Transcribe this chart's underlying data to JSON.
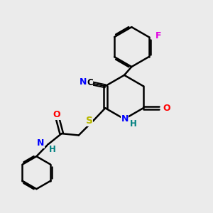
{
  "bg_color": "#ebebeb",
  "bond_color": "#000000",
  "bond_width": 1.8,
  "atom_colors": {
    "N": "#0000ff",
    "O": "#ff0000",
    "S": "#b8b800",
    "F": "#e000e0",
    "C": "#000000",
    "H": "#008080"
  },
  "font_size": 8.5,
  "figsize": [
    3.0,
    3.0
  ],
  "dpi": 100
}
